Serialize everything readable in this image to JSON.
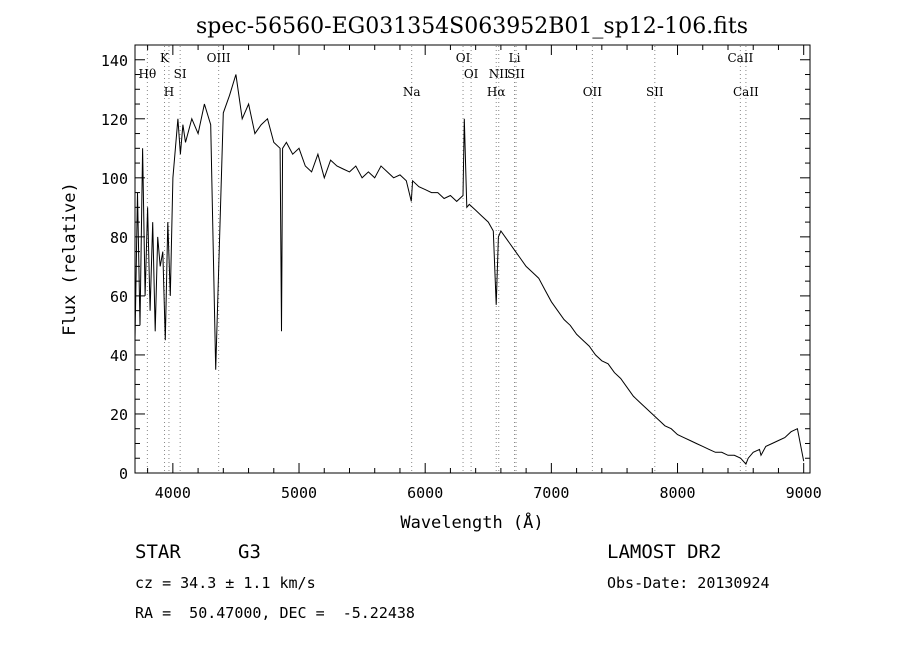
{
  "chart_data": {
    "type": "line",
    "title": "spec-56560-EG031354S063952B01_sp12-106.fits",
    "xlabel": "Wavelength (Å)",
    "ylabel": "Flux (relative)",
    "xlim": [
      3700,
      9050
    ],
    "ylim": [
      0,
      145
    ],
    "x_ticks": [
      4000,
      5000,
      6000,
      7000,
      8000,
      9000
    ],
    "y_ticks": [
      0,
      20,
      40,
      60,
      80,
      100,
      120,
      140
    ],
    "grid": false,
    "series": [
      {
        "x": [
          3700,
          3720,
          3740,
          3760,
          3780,
          3800,
          3820,
          3840,
          3860,
          3880,
          3900,
          3920,
          3940,
          3960,
          3980,
          4000,
          4020,
          4040,
          4060,
          4080,
          4100,
          4150,
          4200,
          4250,
          4300,
          4340,
          4400,
          4450,
          4500,
          4550,
          4600,
          4650,
          4700,
          4750,
          4800,
          4850,
          4861,
          4870,
          4900,
          4950,
          5000,
          5050,
          5100,
          5150,
          5200,
          5250,
          5300,
          5350,
          5400,
          5450,
          5500,
          5550,
          5600,
          5650,
          5700,
          5750,
          5800,
          5850,
          5890,
          5900,
          5950,
          6000,
          6050,
          6100,
          6150,
          6200,
          6250,
          6300,
          6310,
          6330,
          6350,
          6400,
          6450,
          6500,
          6540,
          6563,
          6580,
          6600,
          6650,
          6700,
          6750,
          6800,
          6850,
          6900,
          6950,
          7000,
          7050,
          7100,
          7150,
          7200,
          7250,
          7300,
          7350,
          7400,
          7450,
          7500,
          7550,
          7600,
          7650,
          7700,
          7750,
          7800,
          7850,
          7900,
          7950,
          8000,
          8050,
          8100,
          8150,
          8200,
          8250,
          8300,
          8350,
          8400,
          8450,
          8500,
          8542,
          8560,
          8600,
          8650,
          8662,
          8700,
          8750,
          8800,
          8850,
          8900,
          8950,
          9000
        ],
        "y": [
          45,
          95,
          50,
          110,
          60,
          90,
          55,
          85,
          48,
          80,
          70,
          75,
          45,
          85,
          60,
          100,
          110,
          120,
          108,
          118,
          112,
          120,
          115,
          125,
          118,
          35,
          122,
          128,
          135,
          120,
          125,
          115,
          118,
          120,
          112,
          110,
          48,
          110,
          112,
          108,
          110,
          104,
          102,
          108,
          100,
          106,
          104,
          103,
          102,
          104,
          100,
          102,
          100,
          104,
          102,
          100,
          101,
          99,
          92,
          99,
          97,
          96,
          95,
          95,
          93,
          94,
          92,
          94,
          120,
          90,
          91,
          89,
          87,
          85,
          82,
          57,
          80,
          82,
          79,
          76,
          73,
          70,
          68,
          66,
          62,
          58,
          55,
          52,
          50,
          47,
          45,
          43,
          40,
          38,
          37,
          34,
          32,
          29,
          26,
          24,
          22,
          20,
          18,
          16,
          15,
          13,
          12,
          11,
          10,
          9,
          8,
          7,
          7,
          6,
          6,
          5,
          3,
          5,
          7,
          8,
          6,
          9,
          10,
          11,
          12,
          14,
          15,
          4
        ]
      }
    ],
    "line_annotations": [
      {
        "label": "Hθ",
        "x": 3798,
        "row": 2
      },
      {
        "label": "K",
        "x": 3934,
        "row": 1
      },
      {
        "label": "H",
        "x": 3969,
        "row": 3
      },
      {
        "label": "SI",
        "x": 4058,
        "row": 2
      },
      {
        "label": "OIII",
        "x": 4363,
        "row": 1
      },
      {
        "label": "Na",
        "x": 5893,
        "row": 3
      },
      {
        "label": "OI",
        "x": 6300,
        "row": 1
      },
      {
        "label": "OI",
        "x": 6364,
        "row": 2
      },
      {
        "label": "Li",
        "x": 6708,
        "row": 1
      },
      {
        "label": "NII",
        "x": 6583,
        "row": 2
      },
      {
        "label": "SII",
        "x": 6720,
        "row": 2
      },
      {
        "label": "Hα",
        "x": 6563,
        "row": 3
      },
      {
        "label": "OII",
        "x": 7325,
        "row": 3
      },
      {
        "label": "SII",
        "x": 7820,
        "row": 3
      },
      {
        "label": "CaII",
        "x": 8498,
        "row": 1
      },
      {
        "label": "CaII",
        "x": 8542,
        "row": 3
      }
    ]
  },
  "info": {
    "object_type": "STAR",
    "subclass": "G3",
    "survey": "LAMOST DR2",
    "velocity": "cz = 34.3 ± 1.1 km/s",
    "obs_date": "Obs-Date: 20130924",
    "coords": "RA =  50.47000, DEC =  -5.22438"
  }
}
